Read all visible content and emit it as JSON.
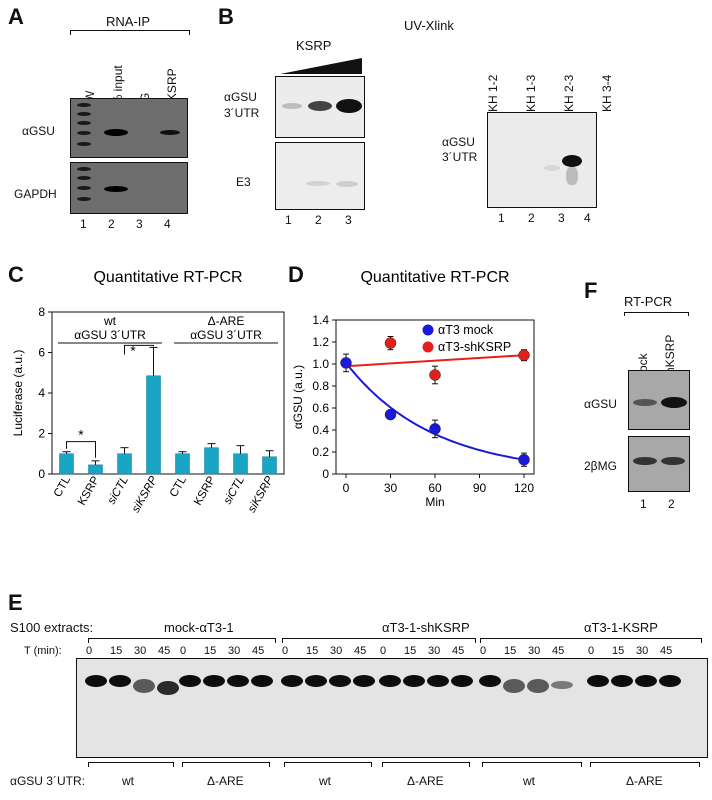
{
  "panels": {
    "A": {
      "label": "A",
      "title": "RNA-IP",
      "lanes": [
        "MW",
        "1% input",
        "IgG",
        "α-KSRP"
      ],
      "lane_numbers": [
        "1",
        "2",
        "3",
        "4"
      ],
      "rows": [
        "αGSU",
        "GAPDH"
      ]
    },
    "B": {
      "label": "B",
      "title": "UV-Xlink",
      "ksrp_label": "KSRP",
      "left_rows": [
        "αGSU",
        "3´UTR",
        "E3"
      ],
      "left_lane_numbers": [
        "1",
        "2",
        "3"
      ],
      "right_lanes": [
        "KH 1-2",
        "KH 1-3",
        "KH 2-3",
        "KH 3-4"
      ],
      "right_row": [
        "αGSU",
        "3´UTR"
      ],
      "right_lane_numbers": [
        "1",
        "2",
        "3",
        "4"
      ]
    },
    "C": {
      "label": "C",
      "group1": [
        "wt",
        "αGSU 3´UTR"
      ],
      "group2": [
        "Δ-ARE",
        "αGSU 3´UTR"
      ],
      "star": "*"
    },
    "D": {
      "label": "D"
    },
    "E": {
      "label": "E",
      "s100_label": "S100 extracts:",
      "extracts": [
        "mock-αT3-1",
        "αT3-1-shKSRP",
        "αT3-1-KSRP"
      ],
      "time_label": "T (min):",
      "times": [
        "0",
        "15",
        "30",
        "45"
      ],
      "utr_label": "αGSU 3´UTR:",
      "constructs": [
        "wt",
        "Δ-ARE"
      ]
    },
    "F": {
      "label": "F",
      "title": "RT-PCR",
      "lanes": [
        "mock",
        "ShKSRP"
      ],
      "rows": [
        "αGSU",
        "2βMG"
      ],
      "lane_numbers": [
        "1",
        "2"
      ]
    }
  },
  "chart_data": [
    {
      "panel": "C",
      "type": "bar",
      "title": "Quantitative RT-PCR",
      "xlabel": "",
      "ylabel": "Luciferase (a.u.)",
      "ylim": [
        0,
        8
      ],
      "yticks": [
        "0",
        "2",
        "4",
        "6",
        "8"
      ],
      "categories": [
        "CTL",
        "KSRP",
        "siCTL",
        "siKSRP",
        "CTL",
        "KSRP",
        "siCTL",
        "siKSRP"
      ],
      "values": [
        1.0,
        0.45,
        1.0,
        4.85,
        1.0,
        1.3,
        1.0,
        0.85
      ],
      "errors": [
        0.1,
        0.2,
        0.3,
        1.4,
        0.1,
        0.2,
        0.4,
        0.3
      ],
      "bar_color": "#1aa5c4",
      "grid": false
    },
    {
      "panel": "D",
      "type": "scatter",
      "title": "Quantitative RT-PCR",
      "xlabel": "Min",
      "ylabel": "αGSU (a.u.)",
      "xlim": [
        0,
        120
      ],
      "ylim": [
        0,
        1.4
      ],
      "xticks": [
        "0",
        "30",
        "60",
        "90",
        "120"
      ],
      "yticks": [
        "0",
        "0.2",
        "0.4",
        "0.6",
        "0.8",
        "1.0",
        "1.2",
        "1.4"
      ],
      "legend_position": "top-right",
      "series": [
        {
          "name": "αT3 mock",
          "color": "#1a1adb",
          "x": [
            0,
            30,
            60,
            120
          ],
          "y": [
            1.01,
            0.54,
            0.41,
            0.13
          ],
          "errors": [
            0.08,
            0.04,
            0.08,
            0.06
          ]
        },
        {
          "name": "αT3-shKSRP",
          "color": "#e3201b",
          "x": [
            30,
            60,
            120
          ],
          "y": [
            1.19,
            0.9,
            1.08
          ],
          "errors": [
            0.06,
            0.08,
            0.05
          ]
        }
      ]
    }
  ]
}
